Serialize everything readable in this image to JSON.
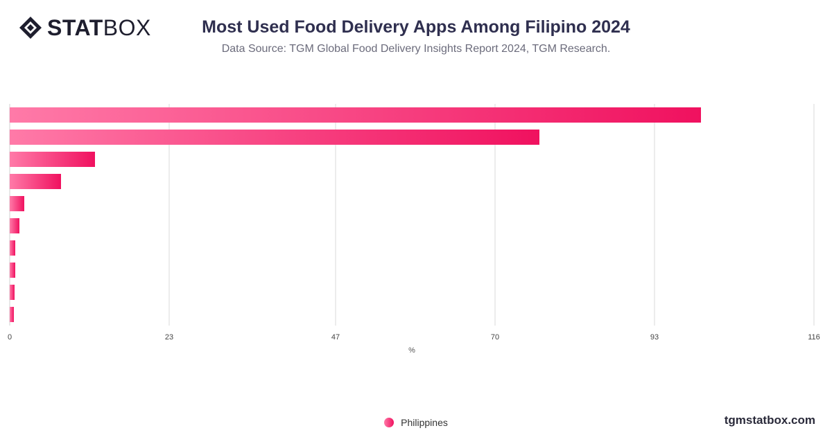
{
  "logo": {
    "bold": "STAT",
    "light": "BOX"
  },
  "header": {
    "title": "Most Used Food Delivery Apps Among Filipino 2024",
    "subtitle": "Data Source: TGM Global Food Delivery Insights Report 2024, TGM Research."
  },
  "footer": {
    "site": "tgmstatbox.com"
  },
  "colors": {
    "bar_start": "#ff7aa8",
    "bar_end": "#f0115f",
    "grid": "#d9d9d9"
  },
  "chart_data": {
    "type": "bar",
    "orientation": "horizontal",
    "title": "Most Used Food Delivery Apps Among Filipino 2024",
    "xlabel": "%",
    "xlim": [
      0,
      116
    ],
    "xticks": [
      0,
      23,
      47,
      70,
      93,
      116
    ],
    "categories": [
      "",
      "",
      "",
      "",
      "",
      "",
      "",
      "",
      "",
      ""
    ],
    "series": [
      {
        "name": "Philippines",
        "values": [
          99.7,
          76.4,
          12.3,
          7.4,
          2.1,
          1.4,
          0.8,
          0.8,
          0.7,
          0.6
        ]
      }
    ],
    "legend": "bottom-center",
    "grid": true
  }
}
